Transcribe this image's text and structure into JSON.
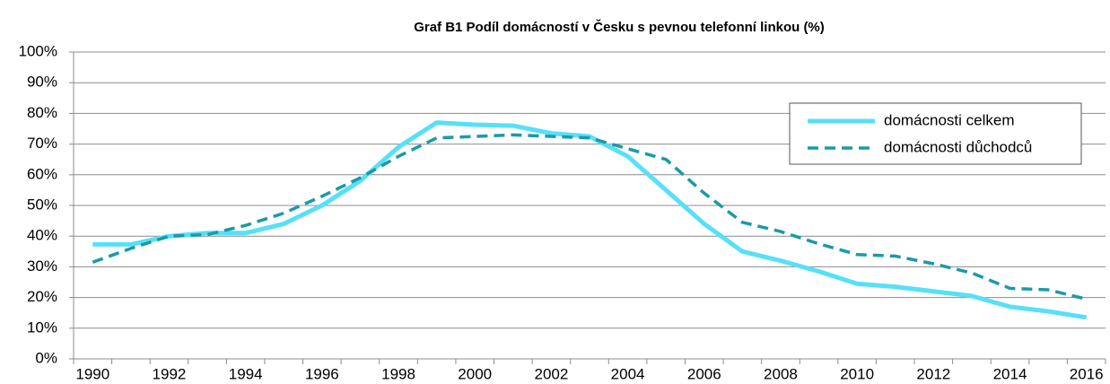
{
  "chart_data": {
    "type": "line",
    "title": "Graf B1 Podíl domácností v Česku s pevnou telefonní linkou (%)",
    "categories": [
      "1990",
      null,
      "1992",
      null,
      "1994",
      null,
      "1996",
      null,
      "1998",
      null,
      "2000",
      null,
      "2002",
      null,
      "2004",
      null,
      "2006",
      null,
      "2008",
      null,
      "2010",
      null,
      "2012",
      null,
      "2014",
      null,
      "2016"
    ],
    "series": [
      {
        "name": "domácnosti celkem",
        "color": "#57e0f7",
        "dash": false,
        "values": [
          37.3,
          37.3,
          40,
          41,
          41,
          44,
          50,
          58,
          69,
          77,
          76.3,
          76,
          73.5,
          72.5,
          66,
          55,
          44,
          35,
          32,
          28.5,
          24.5,
          23.5,
          22,
          20.5,
          17,
          15.5,
          13.5
        ]
      },
      {
        "name": "domácnosti důchodců",
        "color": "#1a9aa8",
        "dash": true,
        "values": [
          31.5,
          36,
          40,
          40.5,
          43.5,
          47.5,
          53,
          59,
          66,
          72,
          72.5,
          73,
          72.5,
          72,
          68.5,
          65,
          54,
          44.5,
          41.5,
          37.5,
          34,
          33.5,
          31,
          28,
          23,
          22.5,
          19.5
        ]
      }
    ],
    "ylim": [
      0,
      100
    ],
    "yticks": [
      {
        "value": 0,
        "label": "0%"
      },
      {
        "value": 10,
        "label": "10%"
      },
      {
        "value": 20,
        "label": "20%"
      },
      {
        "value": 30,
        "label": "30%"
      },
      {
        "value": 40,
        "label": "40%"
      },
      {
        "value": 50,
        "label": "50%"
      },
      {
        "value": 60,
        "label": "60%"
      },
      {
        "value": 70,
        "label": "70%"
      },
      {
        "value": 80,
        "label": "80%"
      },
      {
        "value": 90,
        "label": "90%"
      },
      {
        "value": 100,
        "label": "100%"
      }
    ],
    "grid": true,
    "legend": "top-right"
  }
}
